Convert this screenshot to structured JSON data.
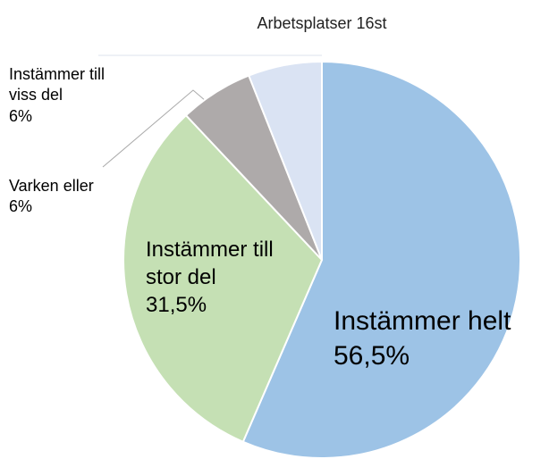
{
  "chart_data": {
    "type": "pie",
    "title": "Arbetsplatser 16st",
    "categories": [
      "Instämmer helt",
      "Instämmer till stor del",
      "Varken eller",
      "Instämmer till viss del"
    ],
    "values": [
      56.5,
      31.5,
      6,
      6
    ],
    "value_labels": [
      "56,5%",
      "31,5%",
      "6%",
      "6%"
    ],
    "colors": [
      "#9dc3e6",
      "#c5e0b4",
      "#aeaaaa",
      "#dae3f3"
    ]
  }
}
